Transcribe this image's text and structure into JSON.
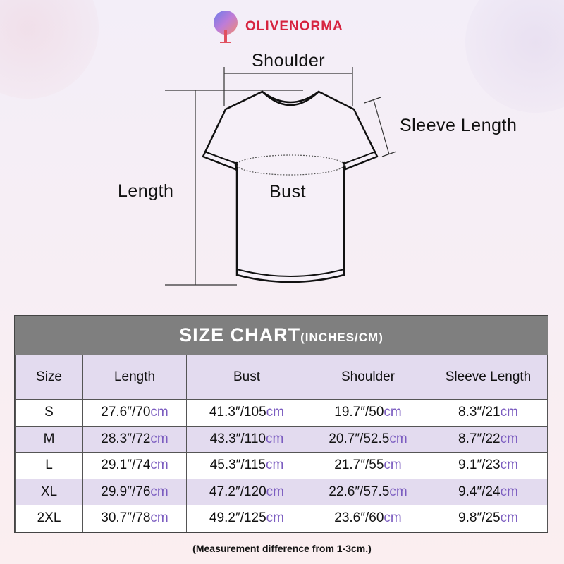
{
  "brand": {
    "name": "OLIVENORMA"
  },
  "diagram": {
    "labels": {
      "shoulder": "Shoulder",
      "sleeve_length": "Sleeve Length",
      "length": "Length",
      "bust": "Bust"
    }
  },
  "size_chart": {
    "title": "SIZE CHART",
    "title_units": "(INCHES/CM)",
    "unit_suffix": "cm",
    "headers": [
      "Size",
      "Length",
      "Bust",
      "Shoulder",
      "Sleeve Length"
    ],
    "rows": [
      {
        "size": "S",
        "values": [
          "27.6″/70",
          "41.3″/105",
          "19.7″/50",
          "8.3″/21"
        ]
      },
      {
        "size": "M",
        "values": [
          "28.3″/72",
          "43.3″/110",
          "20.7″/52.5",
          "8.7″/22"
        ]
      },
      {
        "size": "L",
        "values": [
          "29.1″/74",
          "45.3″/115",
          "21.7″/55",
          "9.1″/23"
        ]
      },
      {
        "size": "XL",
        "values": [
          "29.9″/76",
          "47.2″/120",
          "22.6″/57.5",
          "9.4″/24"
        ]
      },
      {
        "size": "2XL",
        "values": [
          "30.7″/78",
          "49.2″/125",
          "23.6″/60",
          "9.8″/25"
        ]
      }
    ]
  },
  "note": "(Measurement difference from 1-3cm.)",
  "colors": {
    "header_bg": "#7f7f7f",
    "row_alt": "#e3dbef",
    "cm_accent": "#7b5cc0",
    "brand": "#d6233f"
  }
}
